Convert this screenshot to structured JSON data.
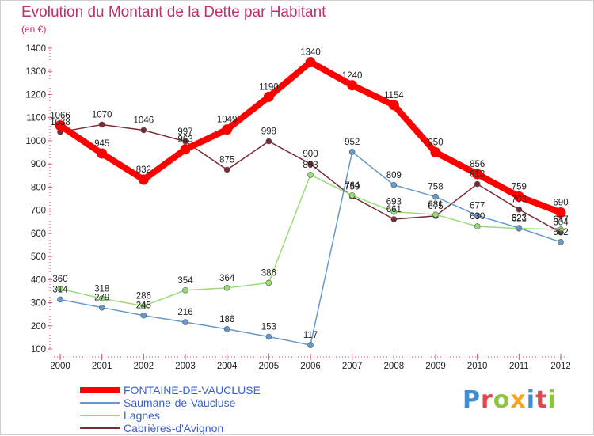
{
  "title": "Evolution du Montant de la Dette par Habitant",
  "unit": "(en €)",
  "logo_text": "Proxiti",
  "logo_colors": [
    "#3b8fd6",
    "#e0474c",
    "#8cc63f",
    "#f5a623",
    "#3b8fd6",
    "#e0474c",
    "#8cc63f"
  ],
  "chart_data": {
    "type": "line",
    "title": "Evolution du Montant de la Dette par Habitant",
    "ylabel": "(en €)",
    "xlabel": "",
    "x": [
      "2000",
      "2001",
      "2002",
      "2003",
      "2004",
      "2005",
      "2006",
      "2007",
      "2008",
      "2009",
      "2010",
      "2011",
      "2012"
    ],
    "ylim": [
      100,
      1400
    ],
    "yticks": [
      100,
      200,
      300,
      400,
      500,
      600,
      700,
      800,
      900,
      1000,
      1100,
      1200,
      1300,
      1400
    ],
    "grid": false,
    "legend_position": "bottom-left",
    "series": [
      {
        "name": "FONTAINE-DE-VAUCLUSE",
        "color": "#ff0000",
        "values": [
          1066,
          945,
          832,
          963,
          1049,
          1190,
          1340,
          1240,
          1154,
          950,
          856,
          759,
          690
        ]
      },
      {
        "name": "Saumane-de-Vaucluse",
        "color": "#6699cc",
        "values": [
          314,
          279,
          245,
          216,
          186,
          153,
          117,
          952,
          809,
          758,
          677,
          623,
          562
        ]
      },
      {
        "name": "Lagnes",
        "color": "#99dd77",
        "values": [
          360,
          318,
          286,
          354,
          364,
          386,
          853,
          764,
          693,
          681,
          630,
          621,
          617
        ]
      },
      {
        "name": "Cabrières-d'Avignon",
        "color": "#7a2b36",
        "values": [
          1038,
          1070,
          1046,
          997,
          875,
          998,
          900,
          759,
          661,
          675,
          813,
          703,
          604
        ]
      }
    ]
  }
}
